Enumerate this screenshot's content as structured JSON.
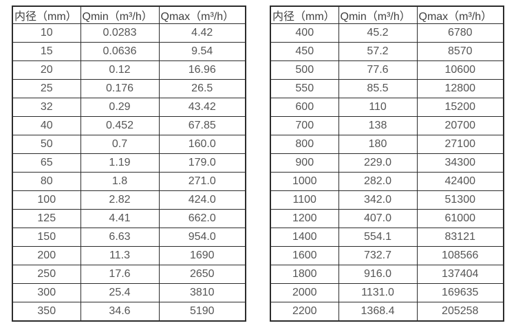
{
  "page": {
    "background_color": "#ffffff",
    "border_color": "#2b2b2b",
    "header_text_color": "#3f3f3f",
    "cell_text_color": "#555555"
  },
  "tables": [
    {
      "id": "flow-range-table-left",
      "headers": [
        "内径（mm）",
        "Qmin（m³/h）",
        "Qmax（m³/h）"
      ],
      "rows": [
        [
          "10",
          "0.0283",
          "4.42"
        ],
        [
          "15",
          "0.0636",
          "9.54"
        ],
        [
          "20",
          "0.12",
          "16.96"
        ],
        [
          "25",
          "0.176",
          "26.5"
        ],
        [
          "32",
          "0.29",
          "43.42"
        ],
        [
          "40",
          "0.452",
          "67.85"
        ],
        [
          "50",
          "0.7",
          "160.0"
        ],
        [
          "65",
          "1.19",
          "179.0"
        ],
        [
          "80",
          "1.8",
          "271.0"
        ],
        [
          "100",
          "2.82",
          "424.0"
        ],
        [
          "125",
          "4.41",
          "662.0"
        ],
        [
          "150",
          "6.63",
          "954.0"
        ],
        [
          "200",
          "11.3",
          "1690"
        ],
        [
          "250",
          "17.6",
          "2650"
        ],
        [
          "300",
          "25.4",
          "3810"
        ],
        [
          "350",
          "34.6",
          "5190"
        ]
      ]
    },
    {
      "id": "flow-range-table-right",
      "headers": [
        "内径（mm）",
        "Qmin（m³/h）",
        "Qmax（m³/h）"
      ],
      "rows": [
        [
          "400",
          "45.2",
          "6780"
        ],
        [
          "450",
          "57.2",
          "8570"
        ],
        [
          "500",
          "77.6",
          "10600"
        ],
        [
          "550",
          "85.5",
          "12800"
        ],
        [
          "600",
          "110",
          "15200"
        ],
        [
          "700",
          "138",
          "20700"
        ],
        [
          "800",
          "180",
          "27100"
        ],
        [
          "900",
          "229.0",
          "34300"
        ],
        [
          "1000",
          "282.0",
          "42400"
        ],
        [
          "1100",
          "342.0",
          "51300"
        ],
        [
          "1200",
          "407.0",
          "61000"
        ],
        [
          "1400",
          "554.1",
          "83121"
        ],
        [
          "1600",
          "732.7",
          "108566"
        ],
        [
          "1800",
          "916.0",
          "137404"
        ],
        [
          "2000",
          "1131.0",
          "169635"
        ],
        [
          "2200",
          "1368.4",
          "205258"
        ]
      ]
    }
  ]
}
